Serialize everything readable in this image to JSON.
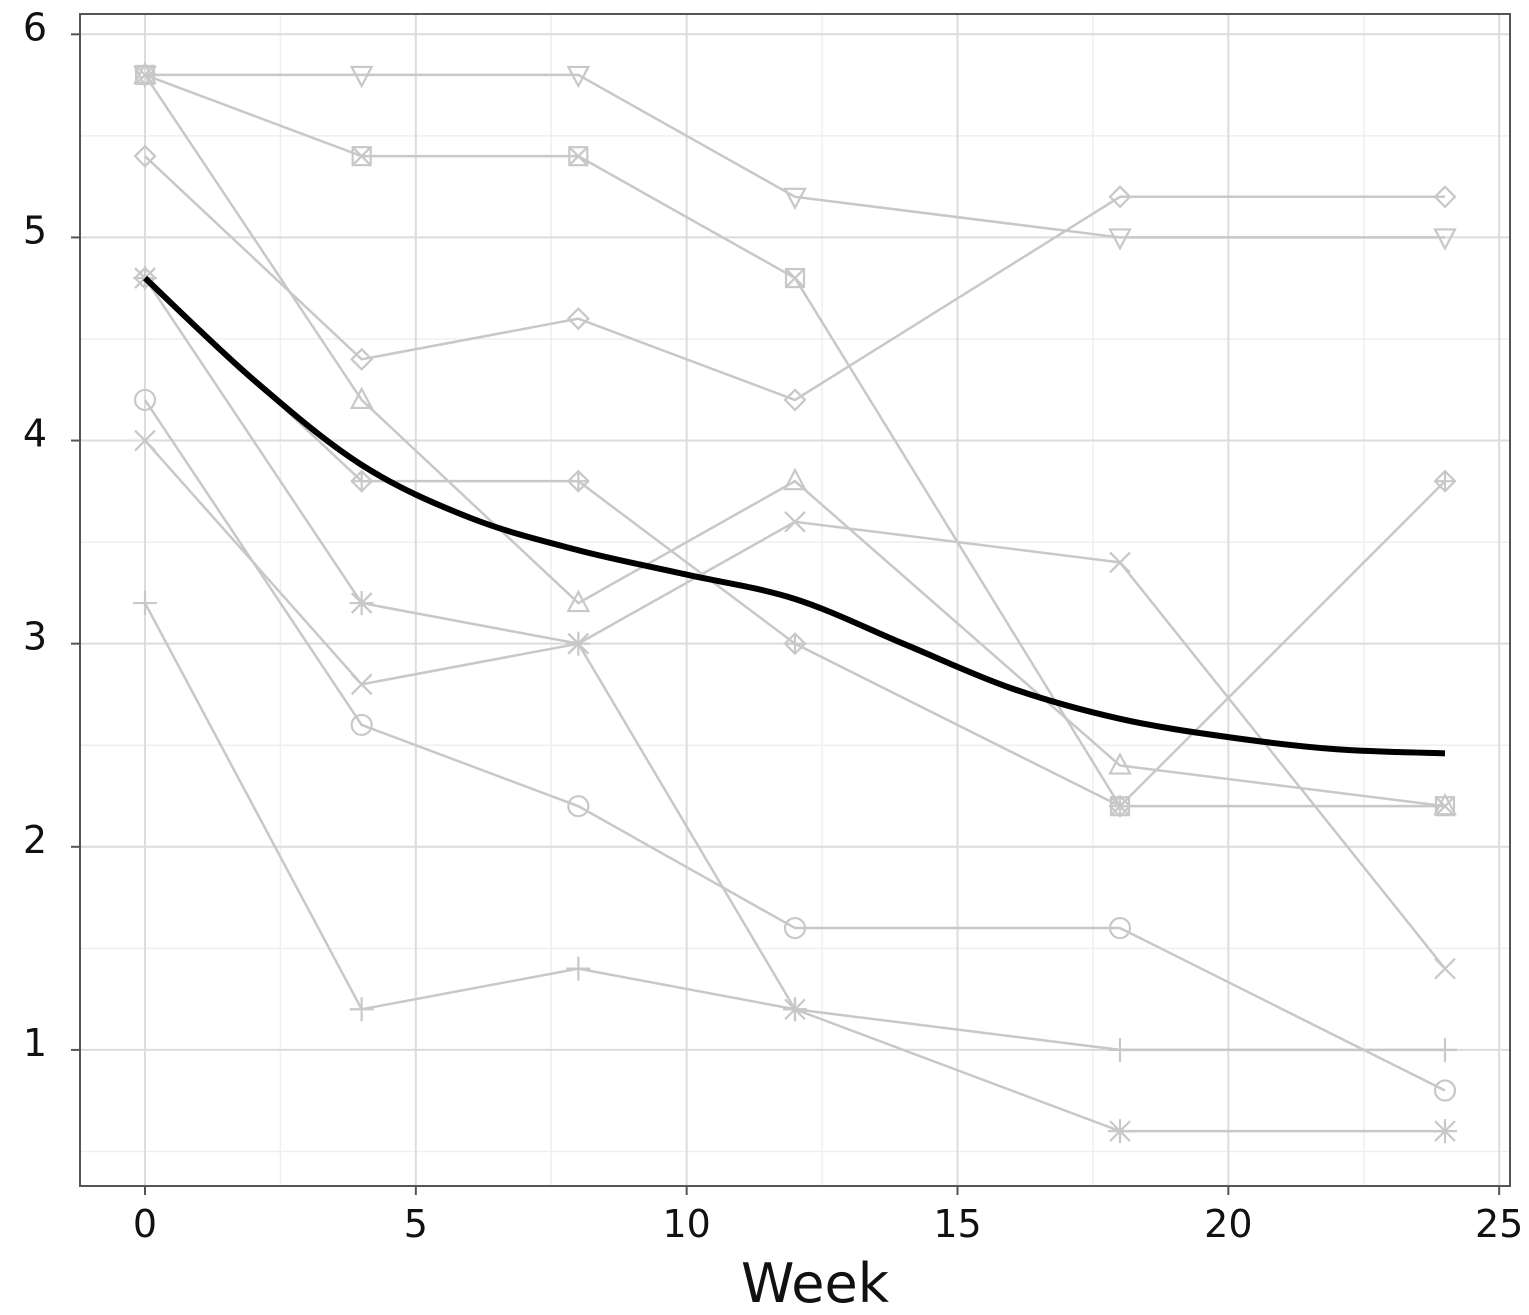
{
  "chart_data": {
    "type": "line",
    "title": "",
    "xlabel": "Week",
    "ylabel": "",
    "xlim": [
      -1.2,
      25.2
    ],
    "ylim": [
      0.33,
      6.1
    ],
    "x_ticks": [
      0,
      5,
      10,
      15,
      20,
      25
    ],
    "x_tick_labels": [
      "0",
      "5",
      "10",
      "15",
      "20",
      "25"
    ],
    "y_ticks": [
      1,
      2,
      3,
      4,
      5,
      6
    ],
    "y_tick_labels": [
      "1",
      "2",
      "3",
      "4",
      "5",
      "6"
    ],
    "grid": true,
    "legend": "none",
    "x": [
      0,
      4,
      8,
      12,
      18,
      24
    ],
    "series": [
      {
        "marker": "triangle-down",
        "values": [
          5.8,
          5.8,
          5.8,
          5.2,
          5.0,
          5.0
        ]
      },
      {
        "marker": "square-x",
        "values": [
          5.8,
          5.4,
          5.4,
          4.8,
          2.2,
          2.2
        ]
      },
      {
        "marker": "diamond",
        "values": [
          5.4,
          4.4,
          4.6,
          4.2,
          5.2,
          5.2
        ]
      },
      {
        "marker": "triangle-up",
        "values": [
          5.8,
          4.2,
          3.2,
          3.8,
          2.4,
          2.2
        ]
      },
      {
        "marker": "diamond-plus",
        "values": [
          4.8,
          3.8,
          3.8,
          3.0,
          2.2,
          3.8
        ]
      },
      {
        "marker": "asterisk",
        "values": [
          4.8,
          3.2,
          3.0,
          1.2,
          0.6,
          0.6
        ]
      },
      {
        "marker": "x",
        "values": [
          4.0,
          2.8,
          3.0,
          3.6,
          3.4,
          1.4
        ]
      },
      {
        "marker": "circle",
        "values": [
          4.2,
          2.6,
          2.2,
          1.6,
          1.6,
          0.8
        ]
      },
      {
        "marker": "plus",
        "values": [
          3.2,
          1.2,
          1.4,
          1.2,
          1.0,
          1.0
        ]
      }
    ],
    "smooth_trend": {
      "x": [
        0,
        2,
        4,
        6,
        8,
        10,
        12,
        14,
        16,
        18,
        20,
        22,
        24
      ],
      "values": [
        4.8,
        4.3,
        3.88,
        3.62,
        3.46,
        3.34,
        3.22,
        3.0,
        2.78,
        2.63,
        2.54,
        2.48,
        2.46
      ]
    },
    "colors": {
      "series": "#c8c8c8",
      "trend": "#000000",
      "grid_major": "#dcdcdc",
      "grid_minor": "#efefef",
      "frame": "#555555"
    }
  }
}
